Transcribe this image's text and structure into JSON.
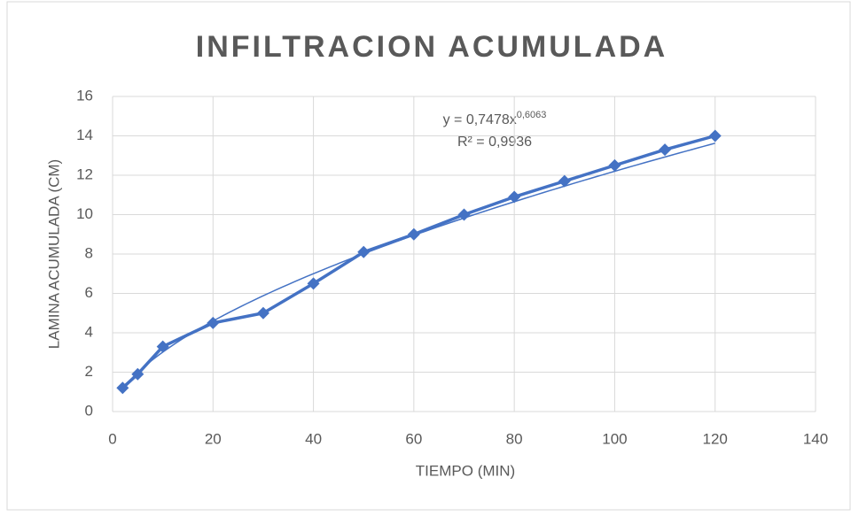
{
  "chart_data": {
    "type": "line",
    "title": "INFILTRACION ACUMULADA",
    "x_label": "TIEMPO (MIN)",
    "y_label": "LAMINA ACUMULADA (CM)",
    "x": [
      2,
      5,
      10,
      20,
      30,
      40,
      50,
      60,
      70,
      80,
      90,
      100,
      110,
      120
    ],
    "series": [
      {
        "name": "LAMINA ACUMULADA (CM)",
        "color": "#4472c4",
        "values": [
          1.2,
          1.9,
          3.3,
          4.5,
          5.0,
          6.5,
          8.1,
          9.0,
          10.0,
          10.9,
          11.7,
          12.5,
          13.3,
          14.0
        ]
      }
    ],
    "trendline": {
      "type": "power",
      "coefficient": 0.7478,
      "exponent": 0.6063,
      "label": "y = 0,7478x",
      "superscript": "0,6063",
      "r_squared_label": "R² = 0,9936"
    },
    "xlim": [
      0,
      140
    ],
    "xticks": [
      0,
      20,
      40,
      60,
      80,
      100,
      120,
      140
    ],
    "ylim": [
      0,
      16
    ],
    "yticks": [
      0,
      2,
      4,
      6,
      8,
      10,
      12,
      14,
      16
    ],
    "grid": true
  }
}
